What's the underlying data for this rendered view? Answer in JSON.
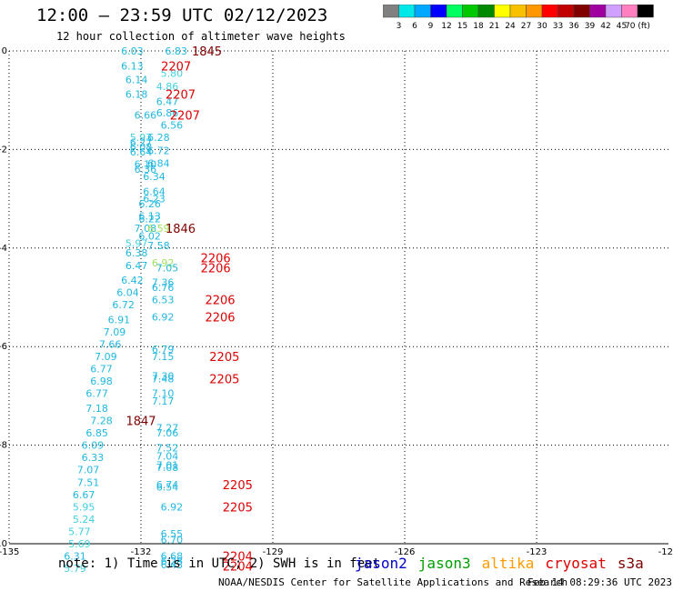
{
  "header": {
    "title": "12:00 — 23:59 UTC 02/12/2023",
    "subtitle": "12 hour collection of altimeter wave heights"
  },
  "colorbar": {
    "labels": [
      "3",
      "6",
      "9",
      "12",
      "15",
      "18",
      "21",
      "24",
      "27",
      "30",
      "33",
      "36",
      "39",
      "42",
      "45",
      "70 (ft)"
    ],
    "colors": [
      "#808080",
      "#00e8e8",
      "#00a8ff",
      "#0000ff",
      "#00ff60",
      "#00c800",
      "#008800",
      "#ffff00",
      "#f8c000",
      "#ff9800",
      "#ff0000",
      "#c00000",
      "#800000",
      "#a000a0",
      "#d0a0ff",
      "#ff80c0",
      "#000000"
    ]
  },
  "footer": {
    "note": "note: 1) Time is in UTC; 2) SWH is in feet",
    "credit": "NOAA/NESDIS Center for Satellite Applications and Research",
    "timestamp": "Feb 14 08:29:36 UTC 2023"
  },
  "legend": [
    {
      "name": "jason2",
      "color": "#0000cc"
    },
    {
      "name": "jason3",
      "color": "#00a000"
    },
    {
      "name": "altika",
      "color": "#ff9900"
    },
    {
      "name": "cryosat",
      "color": "#dd0000"
    },
    {
      "name": "s3a",
      "color": "#800000"
    }
  ],
  "chart_data": {
    "type": "scatter",
    "title": "12:00 — 23:59 UTC 02/12/2023",
    "subtitle": "12 hour collection of altimeter wave heights",
    "xlim": [
      -135,
      -120
    ],
    "ylim": [
      -10,
      0
    ],
    "x_ticks": [
      -135,
      -132,
      -129,
      -126,
      -123,
      -120
    ],
    "y_ticks": [
      0,
      -2,
      -4,
      -6,
      -8,
      -10
    ],
    "grid": true,
    "wave_heights": [
      {
        "x": -132.2,
        "y": 0.0,
        "label": "6.03",
        "color": "#20b8e0"
      },
      {
        "x": -131.2,
        "y": 0.0,
        "label": "6.83",
        "color": "#20b8e0"
      },
      {
        "x": -132.2,
        "y": -0.3,
        "label": "6.13",
        "color": "#20b8e0"
      },
      {
        "x": -131.3,
        "y": -0.45,
        "label": "5.80",
        "color": "#40d0e0"
      },
      {
        "x": -132.1,
        "y": -0.58,
        "label": "6.14",
        "color": "#20b8e0"
      },
      {
        "x": -131.4,
        "y": -0.72,
        "label": "4.86",
        "color": "#40d0e0"
      },
      {
        "x": -132.1,
        "y": -0.88,
        "label": "6.18",
        "color": "#20b8e0"
      },
      {
        "x": -131.4,
        "y": -1.02,
        "label": "6.47",
        "color": "#20b8e0"
      },
      {
        "x": -131.9,
        "y": -1.3,
        "label": "6.66",
        "color": "#20b8e0"
      },
      {
        "x": -131.4,
        "y": -1.25,
        "label": "6.86",
        "color": "#20b8e0"
      },
      {
        "x": -131.3,
        "y": -1.5,
        "label": "6.56",
        "color": "#20b8e0"
      },
      {
        "x": -132.0,
        "y": -1.75,
        "label": "5.93",
        "color": "#40d0e0"
      },
      {
        "x": -131.6,
        "y": -1.75,
        "label": "6.28",
        "color": "#20b8e0"
      },
      {
        "x": -132.0,
        "y": -1.85,
        "label": "6.27",
        "color": "#20b8e0"
      },
      {
        "x": -132.0,
        "y": -1.95,
        "label": "6.08",
        "color": "#20b8e0"
      },
      {
        "x": -131.6,
        "y": -2.02,
        "label": "6.72",
        "color": "#20b8e0"
      },
      {
        "x": -132.0,
        "y": -2.05,
        "label": "6.64",
        "color": "#20b8e0"
      },
      {
        "x": -131.9,
        "y": -2.3,
        "label": "6.10",
        "color": "#20b8e0"
      },
      {
        "x": -131.6,
        "y": -2.28,
        "label": "6.84",
        "color": "#20b8e0"
      },
      {
        "x": -131.9,
        "y": -2.4,
        "label": "6.36",
        "color": "#20b8e0"
      },
      {
        "x": -131.7,
        "y": -2.55,
        "label": "6.34",
        "color": "#20b8e0"
      },
      {
        "x": -131.7,
        "y": -2.85,
        "label": "6.64",
        "color": "#20b8e0"
      },
      {
        "x": -131.7,
        "y": -3.0,
        "label": "6.23",
        "color": "#20b8e0"
      },
      {
        "x": -131.8,
        "y": -3.1,
        "label": "6.26",
        "color": "#20b8e0"
      },
      {
        "x": -131.8,
        "y": -3.35,
        "label": "6.13",
        "color": "#20b8e0"
      },
      {
        "x": -131.8,
        "y": -3.4,
        "label": "6.22",
        "color": "#20b8e0"
      },
      {
        "x": -131.9,
        "y": -3.6,
        "label": "7.08",
        "color": "#20b8e0"
      },
      {
        "x": -131.6,
        "y": -3.6,
        "label": "6.59",
        "color": "#a0e060"
      },
      {
        "x": -131.8,
        "y": -3.75,
        "label": "6.02",
        "color": "#20b8e0"
      },
      {
        "x": -132.1,
        "y": -3.9,
        "label": "5.97",
        "color": "#40d0e0"
      },
      {
        "x": -131.6,
        "y": -3.95,
        "label": "7.58",
        "color": "#20b8e0"
      },
      {
        "x": -132.1,
        "y": -4.1,
        "label": "6.38",
        "color": "#20b8e0"
      },
      {
        "x": -131.5,
        "y": -4.3,
        "label": "6.92",
        "color": "#a0e060"
      },
      {
        "x": -132.1,
        "y": -4.35,
        "label": "6.47",
        "color": "#20b8e0"
      },
      {
        "x": -131.4,
        "y": -4.4,
        "label": "7.05",
        "color": "#20b8e0"
      },
      {
        "x": -132.2,
        "y": -4.65,
        "label": "6.42",
        "color": "#20b8e0"
      },
      {
        "x": -131.5,
        "y": -4.7,
        "label": "7.36",
        "color": "#20b8e0"
      },
      {
        "x": -131.5,
        "y": -4.8,
        "label": "6.76",
        "color": "#20b8e0"
      },
      {
        "x": -132.3,
        "y": -4.9,
        "label": "6.04",
        "color": "#20b8e0"
      },
      {
        "x": -131.5,
        "y": -5.05,
        "label": "6.53",
        "color": "#20b8e0"
      },
      {
        "x": -132.4,
        "y": -5.15,
        "label": "6.72",
        "color": "#20b8e0"
      },
      {
        "x": -131.5,
        "y": -5.4,
        "label": "6.92",
        "color": "#20b8e0"
      },
      {
        "x": -132.5,
        "y": -5.45,
        "label": "6.91",
        "color": "#20b8e0"
      },
      {
        "x": -132.6,
        "y": -5.7,
        "label": "7.09",
        "color": "#20b8e0"
      },
      {
        "x": -132.7,
        "y": -5.95,
        "label": "7.66",
        "color": "#20b8e0"
      },
      {
        "x": -131.5,
        "y": -6.05,
        "label": "6.79",
        "color": "#20b8e0"
      },
      {
        "x": -132.8,
        "y": -6.2,
        "label": "7.09",
        "color": "#20b8e0"
      },
      {
        "x": -131.5,
        "y": -6.2,
        "label": "7.15",
        "color": "#20b8e0"
      },
      {
        "x": -132.9,
        "y": -6.45,
        "label": "6.77",
        "color": "#20b8e0"
      },
      {
        "x": -131.5,
        "y": -6.6,
        "label": "7.30",
        "color": "#20b8e0"
      },
      {
        "x": -131.5,
        "y": -6.65,
        "label": "7.48",
        "color": "#20b8e0"
      },
      {
        "x": -132.9,
        "y": -6.7,
        "label": "6.98",
        "color": "#20b8e0"
      },
      {
        "x": -133.0,
        "y": -6.95,
        "label": "6.77",
        "color": "#20b8e0"
      },
      {
        "x": -131.5,
        "y": -6.95,
        "label": "7.10",
        "color": "#20b8e0"
      },
      {
        "x": -131.5,
        "y": -7.1,
        "label": "7.17",
        "color": "#20b8e0"
      },
      {
        "x": -133.0,
        "y": -7.25,
        "label": "7.18",
        "color": "#20b8e0"
      },
      {
        "x": -132.9,
        "y": -7.5,
        "label": "7.28",
        "color": "#20b8e0"
      },
      {
        "x": -131.4,
        "y": -7.65,
        "label": "7.27",
        "color": "#20b8e0"
      },
      {
        "x": -131.4,
        "y": -7.75,
        "label": "7.06",
        "color": "#20b8e0"
      },
      {
        "x": -133.0,
        "y": -7.75,
        "label": "6.85",
        "color": "#20b8e0"
      },
      {
        "x": -133.1,
        "y": -8.0,
        "label": "6.09",
        "color": "#20b8e0"
      },
      {
        "x": -131.4,
        "y": -8.05,
        "label": "7.52",
        "color": "#20b8e0"
      },
      {
        "x": -131.4,
        "y": -8.22,
        "label": "7.04",
        "color": "#20b8e0"
      },
      {
        "x": -133.1,
        "y": -8.25,
        "label": "6.33",
        "color": "#20b8e0"
      },
      {
        "x": -131.4,
        "y": -8.4,
        "label": "7.01",
        "color": "#20b8e0"
      },
      {
        "x": -131.4,
        "y": -8.45,
        "label": "7.08",
        "color": "#20b8e0"
      },
      {
        "x": -133.2,
        "y": -8.5,
        "label": "7.07",
        "color": "#20b8e0"
      },
      {
        "x": -133.2,
        "y": -8.75,
        "label": "7.51",
        "color": "#20b8e0"
      },
      {
        "x": -131.4,
        "y": -8.8,
        "label": "6.74",
        "color": "#20b8e0"
      },
      {
        "x": -131.4,
        "y": -8.85,
        "label": "6.54",
        "color": "#20b8e0"
      },
      {
        "x": -133.3,
        "y": -9.0,
        "label": "6.67",
        "color": "#20b8e0"
      },
      {
        "x": -133.3,
        "y": -9.25,
        "label": "5.95",
        "color": "#40d0e0"
      },
      {
        "x": -131.3,
        "y": -9.25,
        "label": "6.92",
        "color": "#20b8e0"
      },
      {
        "x": -133.3,
        "y": -9.5,
        "label": "5.24",
        "color": "#40d0e0"
      },
      {
        "x": -133.4,
        "y": -9.75,
        "label": "5.77",
        "color": "#40d0e0"
      },
      {
        "x": -131.3,
        "y": -9.8,
        "label": "6.55",
        "color": "#20b8e0"
      },
      {
        "x": -131.3,
        "y": -9.92,
        "label": "6.70",
        "color": "#20b8e0"
      },
      {
        "x": -133.4,
        "y": -10.0,
        "label": "5.69",
        "color": "#40d0e0"
      },
      {
        "x": -131.3,
        "y": -10.25,
        "label": "6.68",
        "color": "#20b8e0"
      },
      {
        "x": -133.5,
        "y": -10.25,
        "label": "6.31",
        "color": "#20b8e0"
      },
      {
        "x": -131.3,
        "y": -10.35,
        "label": "6.28",
        "color": "#20b8e0"
      },
      {
        "x": -131.3,
        "y": -10.42,
        "label": "6.43",
        "color": "#20b8e0"
      },
      {
        "x": -133.5,
        "y": -10.5,
        "label": "5.79",
        "color": "#40d0e0"
      }
    ],
    "pass_times": [
      {
        "x": -130.5,
        "y": 0.0,
        "label": "1845",
        "color": "#800000"
      },
      {
        "x": -131.2,
        "y": -0.3,
        "label": "2207",
        "color": "#dd0000"
      },
      {
        "x": -131.1,
        "y": -0.88,
        "label": "2207",
        "color": "#dd0000"
      },
      {
        "x": -131.0,
        "y": -1.3,
        "label": "2207",
        "color": "#dd0000"
      },
      {
        "x": -131.1,
        "y": -3.6,
        "label": "1846",
        "color": "#800000"
      },
      {
        "x": -130.3,
        "y": -4.2,
        "label": "2206",
        "color": "#dd0000"
      },
      {
        "x": -130.3,
        "y": -4.4,
        "label": "2206",
        "color": "#dd0000"
      },
      {
        "x": -130.2,
        "y": -5.05,
        "label": "2206",
        "color": "#dd0000"
      },
      {
        "x": -130.2,
        "y": -5.4,
        "label": "2206",
        "color": "#dd0000"
      },
      {
        "x": -130.1,
        "y": -6.2,
        "label": "2205",
        "color": "#dd0000"
      },
      {
        "x": -130.1,
        "y": -6.65,
        "label": "2205",
        "color": "#dd0000"
      },
      {
        "x": -132.0,
        "y": -7.5,
        "label": "1847",
        "color": "#800000"
      },
      {
        "x": -129.8,
        "y": -8.8,
        "label": "2205",
        "color": "#dd0000"
      },
      {
        "x": -129.8,
        "y": -9.25,
        "label": "2205",
        "color": "#dd0000"
      },
      {
        "x": -129.8,
        "y": -10.25,
        "label": "2204",
        "color": "#dd0000"
      },
      {
        "x": -129.8,
        "y": -10.45,
        "label": "2204",
        "color": "#dd0000"
      }
    ]
  }
}
